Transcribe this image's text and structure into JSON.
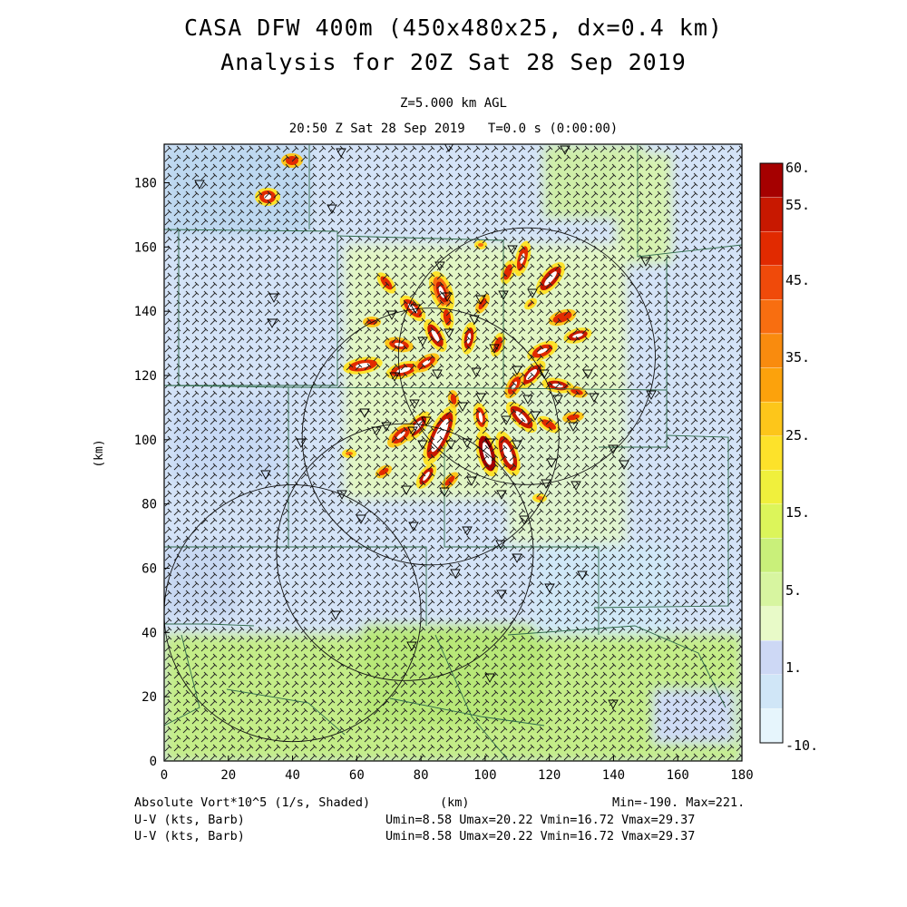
{
  "header": {
    "title_line1": "CASA DFW 400m (450x480x25, dx=0.4 km)",
    "title_line2": "Analysis for 20Z Sat 28 Sep 2019",
    "level": "Z=5.000 km AGL",
    "timestamp": "20:50 Z Sat 28 Sep 2019   T=0.0 s (0:00:00)"
  },
  "map_data": {
    "x_axis": {
      "label": "(km)",
      "range": [
        0,
        180
      ],
      "ticks": [
        "0",
        "20",
        "40",
        "60",
        "80",
        "100",
        "120",
        "140",
        "160",
        "180"
      ]
    },
    "y_axis": {
      "label": "(km)",
      "range": [
        0,
        192
      ],
      "ticks": [
        "0",
        "20",
        "40",
        "60",
        "80",
        "100",
        "120",
        "140",
        "160",
        "180"
      ]
    },
    "colorbar": {
      "labels": [
        "60.",
        "55.",
        "45.",
        "35.",
        "25.",
        "15.",
        "5.",
        "1.",
        "-10."
      ],
      "colors": [
        "#a50000",
        "#c81800",
        "#e12a00",
        "#f04a0a",
        "#f86e10",
        "#f98b0e",
        "#fca20c",
        "#fdc61a",
        "#fde22a",
        "#f0f03c",
        "#dcf55a",
        "#c9f07a",
        "#d7f5a0",
        "#e8fac8",
        "#cdd8f5",
        "#d0e6f7",
        "#e6f5fc"
      ]
    },
    "radars": [
      {
        "center": [
          113,
          126
        ],
        "radius": 40
      },
      {
        "center": [
          83,
          101
        ],
        "radius": 40
      },
      {
        "center": [
          75,
          65
        ],
        "radius": 40
      },
      {
        "center": [
          40,
          46
        ],
        "radius": 40
      }
    ]
  },
  "footer": {
    "field_label": "Absolute Vort*10^5 (1/s, Shaded)",
    "x_label": "(km)",
    "minmax": "Min=-190. Max=221.",
    "wind_label_1": "U-V (kts, Barb)",
    "wind_label_2": "U-V (kts, Barb)",
    "wind_stats_1": "Umin=8.58 Umax=20.22 Vmin=16.72 Vmax=29.37",
    "wind_stats_2": "Umin=8.58 Umax=20.22 Vmin=16.72 Vmax=29.37"
  }
}
